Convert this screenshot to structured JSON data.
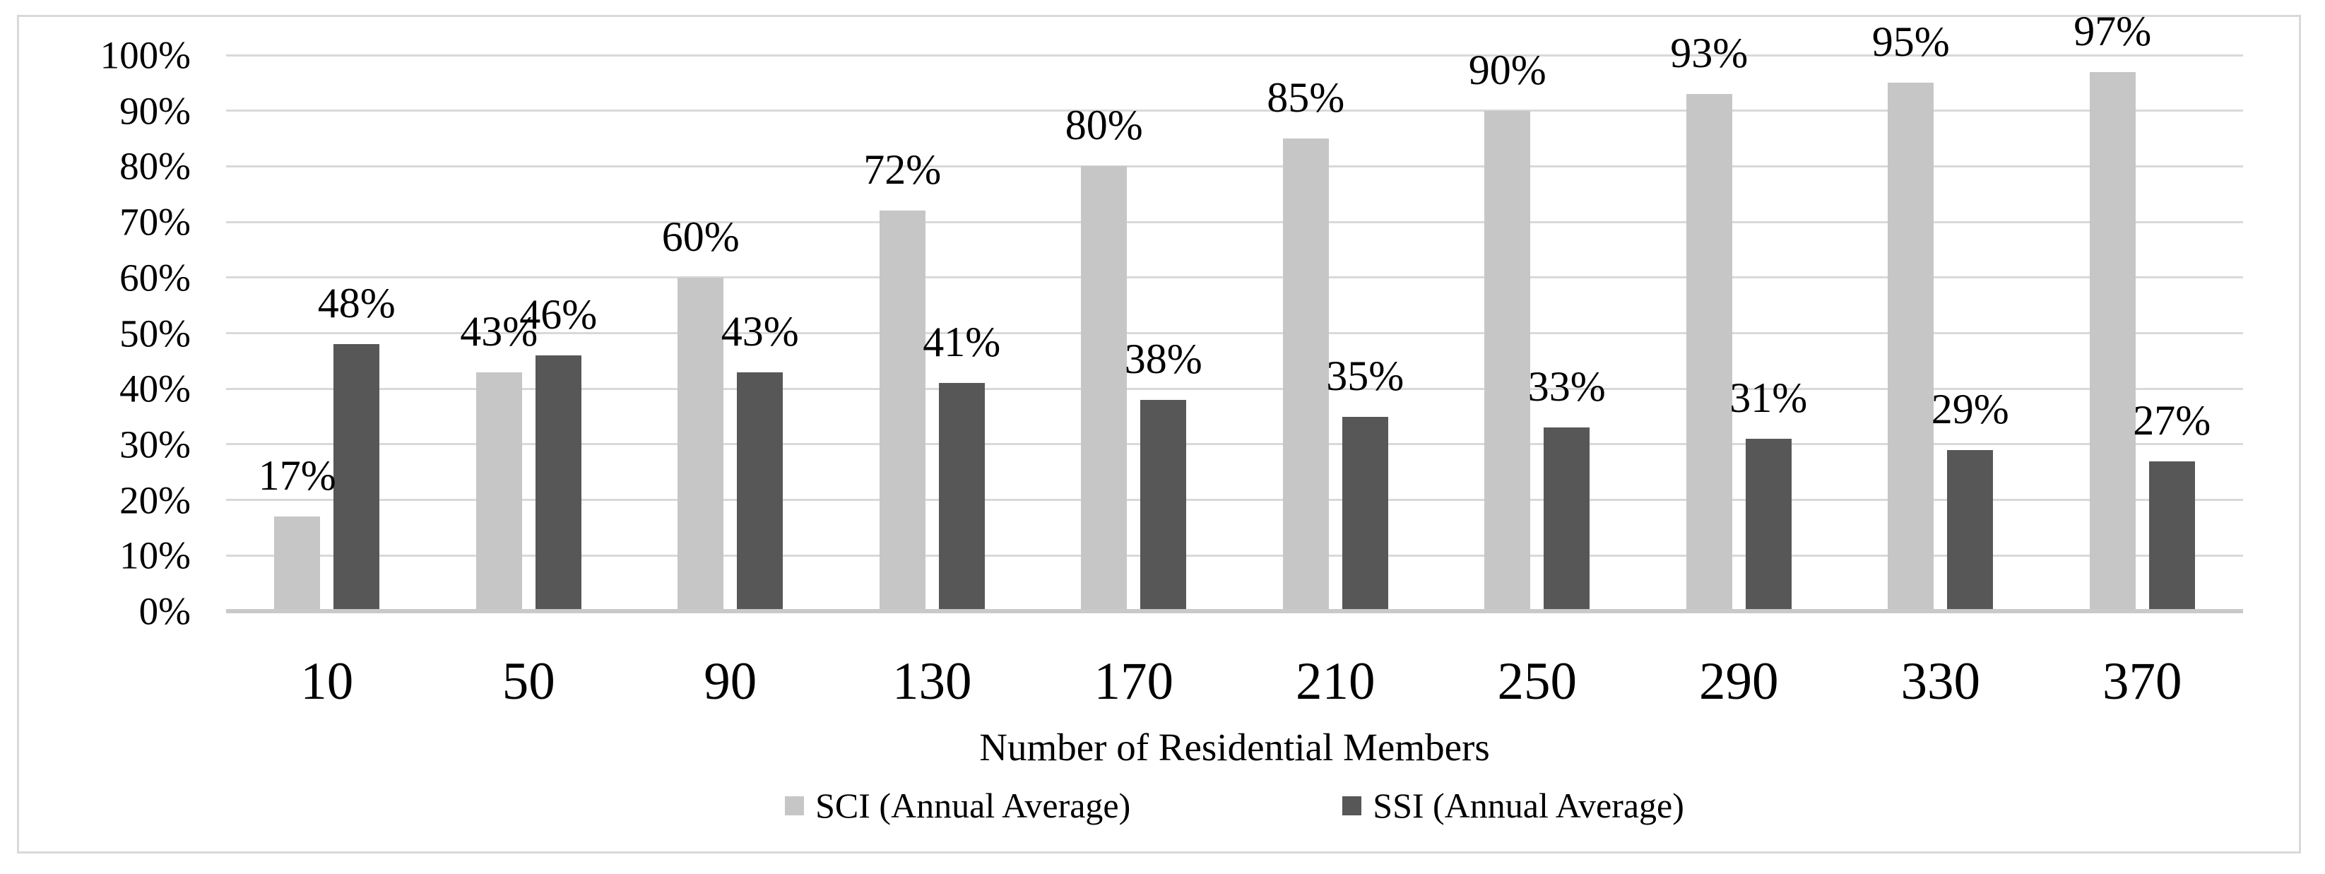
{
  "chart_data": {
    "type": "bar",
    "title": "",
    "xlabel": "Number of Residential Members",
    "ylabel": "",
    "categories": [
      "10",
      "50",
      "90",
      "130",
      "170",
      "210",
      "250",
      "290",
      "330",
      "370"
    ],
    "series": [
      {
        "name": "SCI (Annual Average)",
        "color": "#c6c6c6",
        "values": [
          17,
          43,
          60,
          72,
          80,
          85,
          90,
          93,
          95,
          97
        ],
        "labels": [
          "17%",
          "43%",
          "60%",
          "72%",
          "80%",
          "85%",
          "90%",
          "93%",
          "95%",
          "97%"
        ]
      },
      {
        "name": "SSI (Annual Average)",
        "color": "#575757",
        "values": [
          48,
          46,
          43,
          41,
          38,
          35,
          33,
          31,
          29,
          27
        ],
        "labels": [
          "48%",
          "46%",
          "43%",
          "41%",
          "38%",
          "35%",
          "33%",
          "31%",
          "29%",
          "27%"
        ]
      }
    ],
    "ylim": [
      0,
      100
    ],
    "yticks": [
      0,
      10,
      20,
      30,
      40,
      50,
      60,
      70,
      80,
      90,
      100
    ],
    "ytick_labels": [
      "0%",
      "10%",
      "20%",
      "30%",
      "40%",
      "50%",
      "60%",
      "70%",
      "80%",
      "90%",
      "100%"
    ],
    "grid": "horizontal",
    "legend_position": "bottom",
    "data_labels": "outside-end"
  },
  "colors": {
    "sci_bar": "#c6c6c6",
    "ssi_bar": "#575757",
    "gridline": "#d9d9d9",
    "axis_baseline": "#c9c9c9",
    "frame_border": "#d9d9d9",
    "text": "#000000",
    "background": "#ffffff"
  }
}
